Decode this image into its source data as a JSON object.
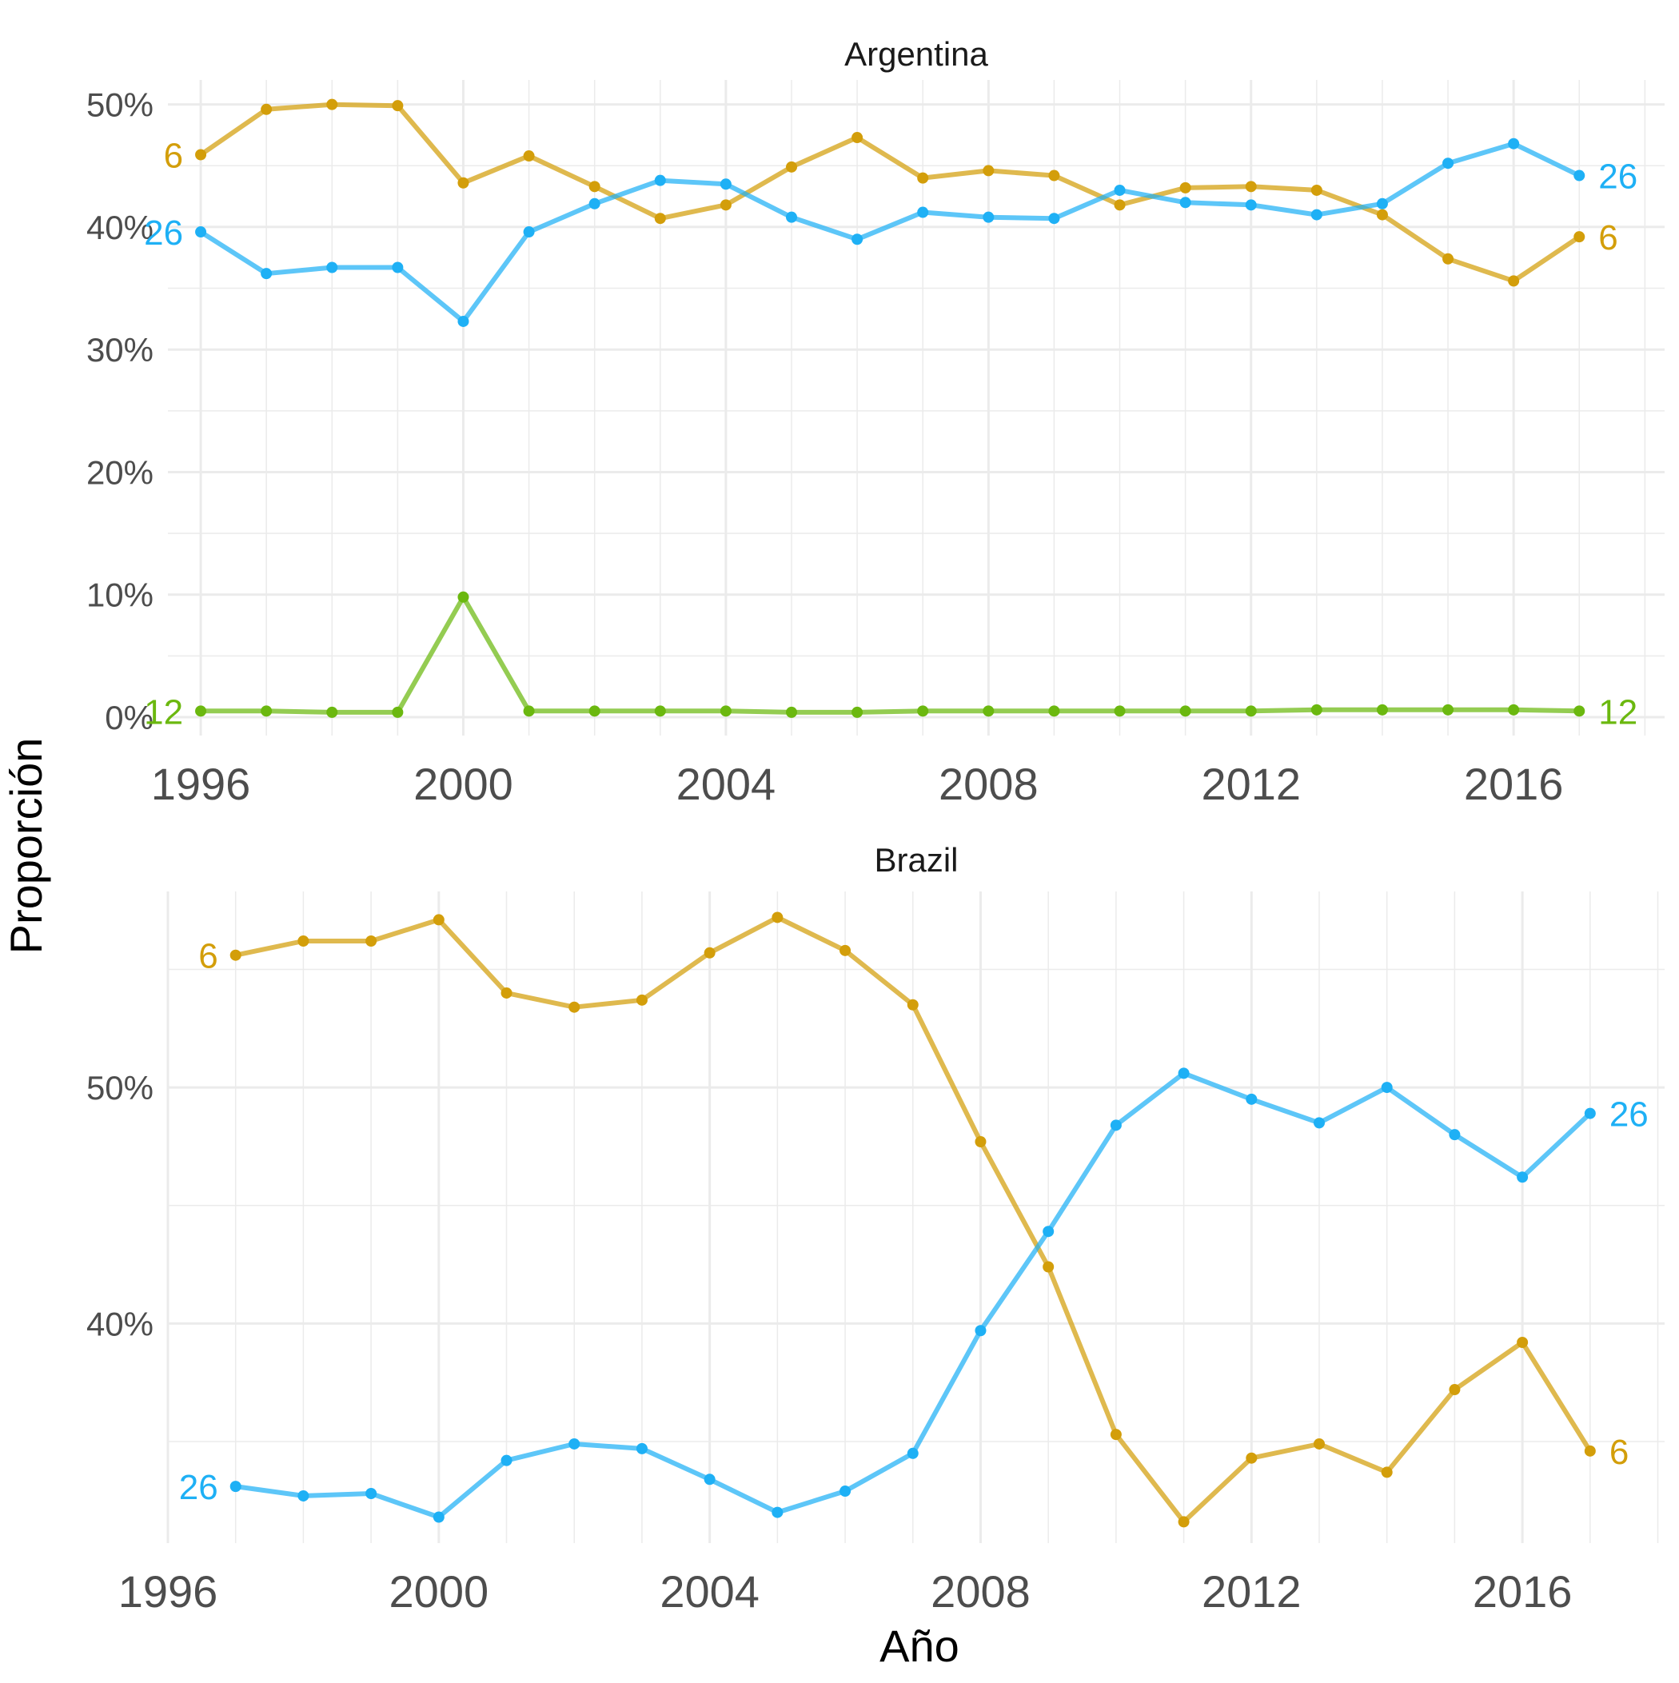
{
  "ylabel": "Proporción",
  "xlabel": "Año",
  "colors": {
    "6": "#D39E0A",
    "26": "#1EB0F5",
    "12": "#6BB80F"
  },
  "chart_data": [
    {
      "type": "line",
      "title": "Argentina",
      "xlim": [
        1995.5,
        2018.3
      ],
      "ylim": [
        -0.015,
        0.52
      ],
      "x_ticks": [
        1996,
        2000,
        2004,
        2008,
        2012,
        2016
      ],
      "x_tick_labels": [
        "1996",
        "2000",
        "2004",
        "2008",
        "2012",
        "2016"
      ],
      "y_ticks": [
        0,
        0.1,
        0.2,
        0.3,
        0.4,
        0.5
      ],
      "y_tick_labels": [
        "0%",
        "10%",
        "20%",
        "30%",
        "40%",
        "50%"
      ],
      "grid": true,
      "x": [
        1996,
        1997,
        1998,
        1999,
        2000,
        2001,
        2002,
        2003,
        2004,
        2005,
        2006,
        2007,
        2008,
        2009,
        2010,
        2011,
        2012,
        2013,
        2014,
        2015,
        2016,
        2017
      ],
      "series": [
        {
          "name": "6",
          "values": [
            0.459,
            0.496,
            0.5,
            0.499,
            0.436,
            0.458,
            0.433,
            0.407,
            0.418,
            0.449,
            0.473,
            0.44,
            0.446,
            0.442,
            0.418,
            0.432,
            0.433,
            0.43,
            0.41,
            0.374,
            0.356,
            0.392
          ]
        },
        {
          "name": "26",
          "values": [
            0.396,
            0.362,
            0.367,
            0.367,
            0.323,
            0.396,
            0.419,
            0.438,
            0.435,
            0.408,
            0.39,
            0.412,
            0.408,
            0.407,
            0.43,
            0.42,
            0.418,
            0.41,
            0.419,
            0.452,
            0.468,
            0.442
          ]
        },
        {
          "name": "12",
          "values": [
            0.005,
            0.005,
            0.004,
            0.004,
            0.098,
            0.005,
            0.005,
            0.005,
            0.005,
            0.004,
            0.004,
            0.005,
            0.005,
            0.005,
            0.005,
            0.005,
            0.005,
            0.006,
            0.006,
            0.006,
            0.006,
            0.005
          ]
        }
      ]
    },
    {
      "type": "line",
      "title": "Brazil",
      "xlim": [
        1996,
        2018.1
      ],
      "ylim": [
        0.307,
        0.583
      ],
      "x_ticks": [
        1996,
        2000,
        2004,
        2008,
        2012,
        2016
      ],
      "x_tick_labels": [
        "1996",
        "2000",
        "2004",
        "2008",
        "2012",
        "2016"
      ],
      "y_ticks": [
        0.4,
        0.5
      ],
      "y_tick_labels": [
        "40%",
        "50%"
      ],
      "grid": true,
      "x": [
        1997,
        1998,
        1999,
        2000,
        2001,
        2002,
        2003,
        2004,
        2005,
        2006,
        2007,
        2008,
        2009,
        2010,
        2011,
        2012,
        2013,
        2014,
        2015,
        2016,
        2017
      ],
      "series": [
        {
          "name": "6",
          "values": [
            0.556,
            0.562,
            0.562,
            0.571,
            0.54,
            0.534,
            0.537,
            0.557,
            0.572,
            0.558,
            0.535,
            0.477,
            0.424,
            0.353,
            0.316,
            0.343,
            0.349,
            0.337,
            0.372,
            0.392,
            0.346
          ]
        },
        {
          "name": "26",
          "values": [
            0.331,
            0.327,
            0.328,
            0.318,
            0.342,
            0.349,
            0.347,
            0.334,
            0.32,
            0.329,
            0.345,
            0.397,
            0.439,
            0.484,
            0.506,
            0.495,
            0.485,
            0.5,
            0.48,
            0.462,
            0.489
          ]
        }
      ]
    }
  ]
}
